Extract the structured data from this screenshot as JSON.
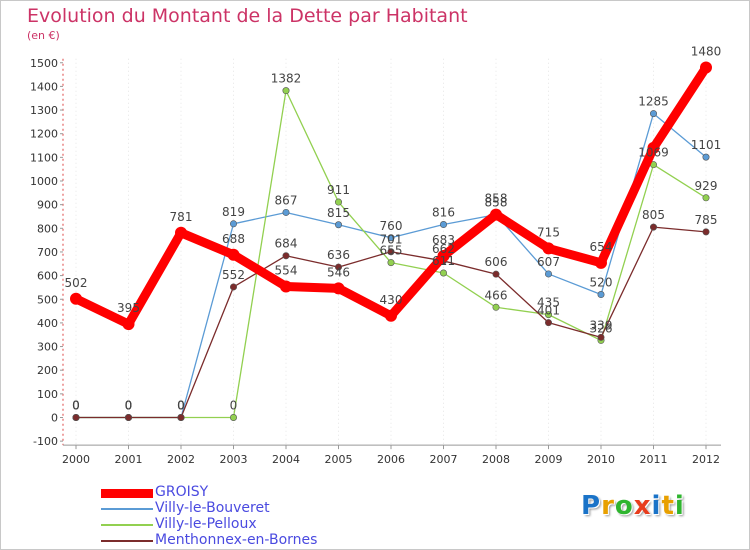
{
  "title": "Evolution du Montant de la Dette par Habitant",
  "subtitle": "(en €)",
  "logo": {
    "text": "Proxiti",
    "colors": [
      "#1a73c8",
      "#e8a000",
      "#2fb52f",
      "#e83c1c",
      "#1a73c8",
      "#e8a000",
      "#2fb52f"
    ]
  },
  "chart_data": {
    "type": "line",
    "x": [
      "2000",
      "2001",
      "2002",
      "2003",
      "2004",
      "2005",
      "2006",
      "2007",
      "2008",
      "2009",
      "2010",
      "2011",
      "2012"
    ],
    "ylim": [
      -100,
      1500
    ],
    "yticks": [
      "-100",
      "0",
      "100",
      "200",
      "300",
      "400",
      "500",
      "600",
      "700",
      "800",
      "900",
      "1000",
      "1100",
      "1200",
      "1300",
      "1400",
      "1500"
    ],
    "grid": false,
    "legend_position": "bottom-left",
    "series": [
      {
        "name": "GROISY",
        "color": "#ff0000",
        "values": [
          502,
          395,
          781,
          688,
          554,
          546,
          430,
          683,
          858,
          715,
          654,
          1140,
          1480
        ],
        "labels": [
          "502",
          "395",
          "781",
          "688",
          "554",
          "546",
          "430",
          "683",
          "858",
          "715",
          "654",
          "",
          "1480"
        ]
      },
      {
        "name": "Villy-le-Bouveret",
        "color": "#5b9bd5",
        "values": [
          0,
          0,
          0,
          819,
          867,
          815,
          760,
          816,
          858,
          607,
          520,
          1285,
          1101
        ],
        "labels": [
          "0",
          "0",
          "0",
          "819",
          "867",
          "815",
          "760",
          "816",
          "858",
          "607",
          "520",
          "1285",
          "1101"
        ]
      },
      {
        "name": "Villy-le-Pelloux",
        "color": "#92d050",
        "values": [
          0,
          0,
          0,
          0,
          1382,
          911,
          655,
          611,
          466,
          435,
          326,
          1069,
          929
        ],
        "labels": [
          "0",
          "0",
          "0",
          "0",
          "1382",
          "911",
          "655",
          "611",
          "466",
          "435",
          "326",
          "1069",
          "929"
        ]
      },
      {
        "name": "Menthonnex-en-Bornes",
        "color": "#7b2c2c",
        "values": [
          0,
          0,
          0,
          552,
          684,
          636,
          701,
          662,
          606,
          401,
          339,
          805,
          785
        ],
        "labels": [
          "0",
          "0",
          "0",
          "552",
          "684",
          "636",
          "701",
          "662",
          "606",
          "401",
          "339",
          "805",
          "785"
        ]
      }
    ]
  }
}
